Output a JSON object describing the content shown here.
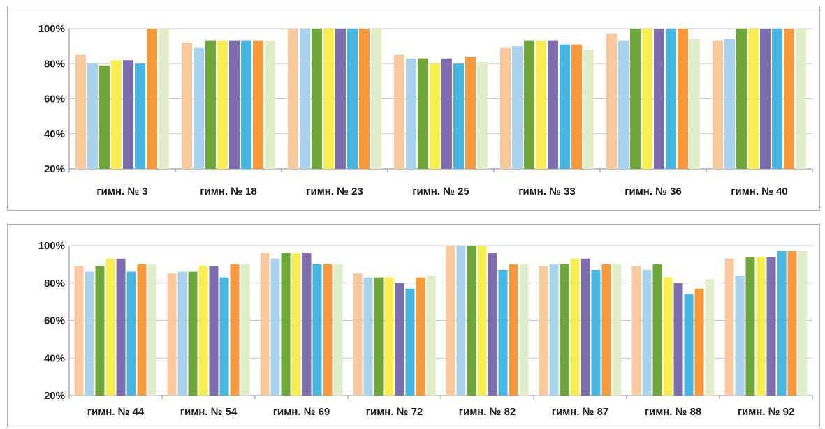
{
  "chart_data": [
    {
      "type": "bar",
      "title": "",
      "xlabel": "",
      "ylabel": "",
      "ylim": [
        20,
        100
      ],
      "yticks": [
        "20%",
        "40%",
        "60%",
        "80%",
        "100%"
      ],
      "ytick_values": [
        20,
        40,
        60,
        80,
        100
      ],
      "grid": true,
      "legend": "none",
      "colors": [
        "#f9c89e",
        "#a9d3ea",
        "#6fa63a",
        "#f5ee4e",
        "#7d6fae",
        "#46b6e3",
        "#f79a3e",
        "#dfeec8"
      ],
      "categories": [
        "гимн. № 3",
        "гимн. № 18",
        "гимн. № 23",
        "гимн. № 25",
        "гимн. № 33",
        "гимн. № 36",
        "гимн. № 40"
      ],
      "series": [
        {
          "values": [
            85,
            92,
            100,
            85,
            89,
            97,
            93
          ]
        },
        {
          "values": [
            80,
            89,
            100,
            83,
            90,
            93,
            94
          ]
        },
        {
          "values": [
            79,
            93,
            100,
            83,
            93,
            100,
            100
          ]
        },
        {
          "values": [
            82,
            93,
            100,
            80,
            93,
            100,
            100
          ]
        },
        {
          "values": [
            82,
            93,
            100,
            83,
            93,
            100,
            100
          ]
        },
        {
          "values": [
            80,
            93,
            100,
            80,
            91,
            100,
            100
          ]
        },
        {
          "values": [
            100,
            93,
            100,
            84,
            91,
            100,
            100
          ]
        },
        {
          "values": [
            100,
            93,
            100,
            81,
            88,
            94,
            100
          ]
        }
      ]
    },
    {
      "type": "bar",
      "title": "",
      "xlabel": "",
      "ylabel": "",
      "ylim": [
        20,
        100
      ],
      "yticks": [
        "20%",
        "40%",
        "60%",
        "80%",
        "100%"
      ],
      "ytick_values": [
        20,
        40,
        60,
        80,
        100
      ],
      "grid": true,
      "legend": "none",
      "colors": [
        "#f9c89e",
        "#a9d3ea",
        "#6fa63a",
        "#f5ee4e",
        "#7d6fae",
        "#46b6e3",
        "#f79a3e",
        "#dfeec8"
      ],
      "categories": [
        "гимн. № 44",
        "гимн. № 54",
        "гимн. № 69",
        "гимн. № 72",
        "гимн. № 82",
        "гимн. № 87",
        "гимн. № 88",
        "гимн. № 92"
      ],
      "series": [
        {
          "values": [
            89,
            85,
            96,
            85,
            100,
            89,
            89,
            93
          ]
        },
        {
          "values": [
            86,
            86,
            93,
            83,
            100,
            90,
            87,
            84
          ]
        },
        {
          "values": [
            89,
            86,
            96,
            83,
            100,
            90,
            90,
            94
          ]
        },
        {
          "values": [
            93,
            89,
            96,
            83,
            100,
            93,
            83,
            94
          ]
        },
        {
          "values": [
            93,
            89,
            96,
            80,
            96,
            93,
            80,
            94
          ]
        },
        {
          "values": [
            86,
            83,
            90,
            77,
            87,
            87,
            74,
            97
          ]
        },
        {
          "values": [
            90,
            90,
            90,
            83,
            90,
            90,
            77,
            97
          ]
        },
        {
          "values": [
            90,
            90,
            90,
            84,
            90,
            90,
            82,
            97
          ]
        }
      ]
    }
  ]
}
